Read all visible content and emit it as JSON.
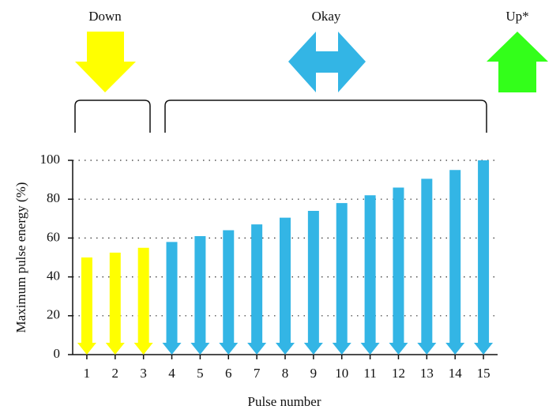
{
  "chart_data": {
    "type": "arrow-bar",
    "x": [
      1,
      2,
      3,
      4,
      5,
      6,
      7,
      8,
      9,
      10,
      11,
      12,
      13,
      14,
      15
    ],
    "values": [
      50,
      52.5,
      55,
      58,
      61,
      64,
      67,
      70.5,
      74,
      78,
      82,
      86,
      90.5,
      95,
      100
    ],
    "colors": [
      "#ffff00",
      "#ffff00",
      "#ffff00",
      "#33b5e5",
      "#33b5e5",
      "#33b5e5",
      "#33b5e5",
      "#33b5e5",
      "#33b5e5",
      "#33b5e5",
      "#33b5e5",
      "#33b5e5",
      "#33b5e5",
      "#33b5e5",
      "#33b5e5"
    ],
    "xlim": [
      0.5,
      15.5
    ],
    "xticks": [
      1,
      2,
      3,
      4,
      5,
      6,
      7,
      8,
      9,
      10,
      11,
      12,
      13,
      14,
      15
    ],
    "ylim": [
      0,
      100
    ],
    "yticks": [
      0,
      20,
      40,
      60,
      80,
      100
    ],
    "grid": true,
    "x_label": "Pulse number",
    "y_label": "Maximum pulse energy (%)",
    "annotations": [
      "Down",
      "Okay",
      "Up*"
    ]
  }
}
